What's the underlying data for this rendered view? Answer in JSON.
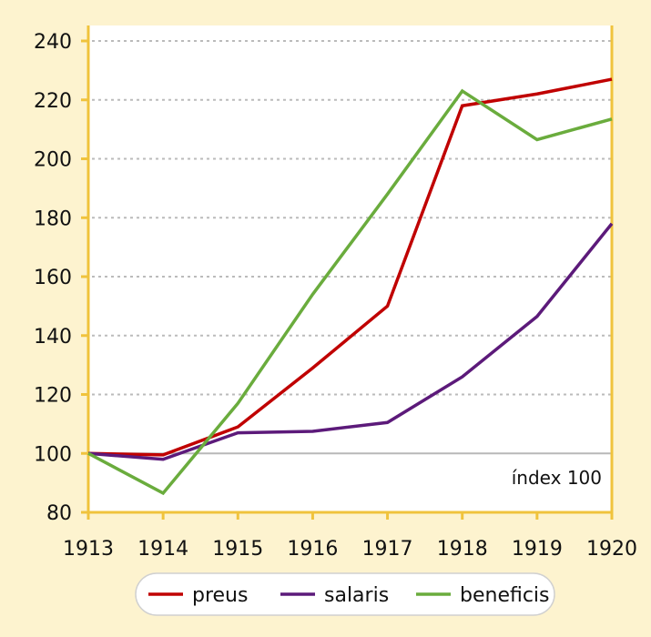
{
  "chart_data": {
    "type": "line",
    "title": "",
    "xlabel": "",
    "ylabel": "",
    "x": [
      1913,
      1914,
      1915,
      1916,
      1917,
      1918,
      1919,
      1920
    ],
    "x_tick_labels": [
      "1913",
      "1914",
      "1915",
      "1916",
      "1917",
      "1918",
      "1919",
      "1920"
    ],
    "y_tick_labels": [
      "80",
      "100",
      "120",
      "140",
      "160",
      "180",
      "200",
      "220",
      "240"
    ],
    "ylim": [
      80,
      240
    ],
    "grid": "horizontal dotted",
    "baseline": 100,
    "annotation": "índex 100",
    "legend_position": "bottom",
    "series": [
      {
        "name": "preus",
        "color": "#c00000",
        "values": [
          100,
          99.5,
          109,
          129,
          150,
          218,
          222,
          227
        ]
      },
      {
        "name": "salaris",
        "color": "#5c1a7a",
        "values": [
          100,
          98,
          107,
          107.5,
          110.5,
          126,
          146.5,
          178
        ]
      },
      {
        "name": "beneficis",
        "color": "#6aac3d",
        "values": [
          100,
          86.5,
          117,
          154,
          188,
          223,
          206.5,
          213.5
        ]
      }
    ]
  },
  "colors": {
    "background": "#fdf3cf",
    "plot_background": "#ffffff",
    "axis": "#f0c33c",
    "grid": "#bbbbbb"
  }
}
